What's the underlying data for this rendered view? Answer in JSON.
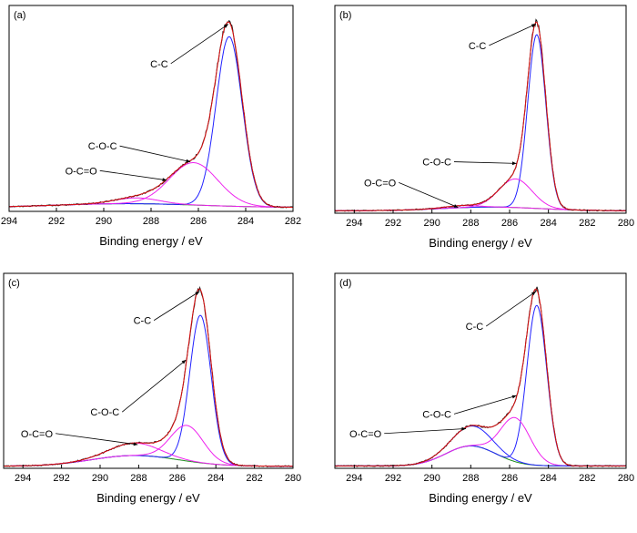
{
  "chart_data": [
    {
      "type": "line",
      "panel": "(a)",
      "xlabel": "Binding energy / eV",
      "xlim": [
        294,
        282
      ],
      "x_ticks": [
        294,
        292,
        290,
        288,
        286,
        284,
        282
      ],
      "y_axis": "none (intensity, no tick labels)",
      "grid": false,
      "series": [
        {
          "component": "C-C",
          "color": "#2222ff",
          "center": 284.7,
          "amplitude": 0.88,
          "fwhm": 1.3
        },
        {
          "component": "C-O-C",
          "color": "#ee22ee",
          "center": 286.2,
          "amplitude": 0.22,
          "fwhm": 2.4
        },
        {
          "component": "O-C=O",
          "color": "#ee22ee",
          "center": 288.6,
          "amplitude": 0.03,
          "fwhm": 2.2
        }
      ],
      "background_range": [
        0.02,
        0.02
      ],
      "background_bump": {
        "center": 289.0,
        "height": 0.02,
        "width": 6.0
      },
      "annotations": [
        {
          "text": "C-C",
          "peak_x": 284.7
        },
        {
          "text": "C-O-C",
          "peak_x": 286.3
        },
        {
          "text": "O-C=O",
          "peak_x": 287.3
        }
      ]
    },
    {
      "type": "line",
      "panel": "(b)",
      "xlabel": "Binding energy / eV",
      "xlim": [
        295,
        280
      ],
      "x_ticks": [
        294,
        292,
        290,
        288,
        286,
        284,
        282,
        280
      ],
      "y_axis": "none (intensity, no tick labels)",
      "grid": false,
      "series": [
        {
          "component": "C-C",
          "color": "#2222ff",
          "center": 284.6,
          "amplitude": 0.85,
          "fwhm": 1.1
        },
        {
          "component": "C-O-C",
          "color": "#ee22ee",
          "center": 285.7,
          "amplitude": 0.14,
          "fwhm": 2.0
        },
        {
          "component": "O-C=O",
          "color": "#ee22ee",
          "center": 288.5,
          "amplitude": 0.01,
          "fwhm": 2.0
        }
      ],
      "background_range": [
        0.012,
        0.012
      ],
      "background_bump": {
        "center": 287.0,
        "height": 0.018,
        "width": 5.0
      },
      "annotations": [
        {
          "text": "C-C",
          "peak_x": 284.6
        },
        {
          "text": "C-O-C",
          "peak_x": 285.6
        },
        {
          "text": "O-C=O",
          "peak_x": 288.6
        }
      ]
    },
    {
      "type": "line",
      "panel": "(c)",
      "xlabel": "Binding energy / eV",
      "xlim": [
        295,
        280
      ],
      "x_ticks": [
        294,
        292,
        290,
        288,
        286,
        284,
        282,
        280
      ],
      "y_axis": "none (intensity, no tick labels)",
      "grid": false,
      "series": [
        {
          "component": "C-C",
          "color": "#2222ff",
          "center": 284.8,
          "amplitude": 0.83,
          "fwhm": 1.3
        },
        {
          "component": "C-O-C",
          "color": "#ee22ee",
          "center": 285.5,
          "amplitude": 0.2,
          "fwhm": 2.0
        },
        {
          "component": "O-C=O",
          "color": "#ee22ee",
          "center": 288.2,
          "amplitude": 0.07,
          "fwhm": 3.0
        }
      ],
      "background_range": [
        0.012,
        0.012
      ],
      "background_bump": {
        "center": 288.2,
        "height": 0.06,
        "width": 4.5
      },
      "annotations": [
        {
          "text": "C-C",
          "peak_x": 284.8
        },
        {
          "text": "C-O-C",
          "peak_x": 285.5
        },
        {
          "text": "O-C=O",
          "peak_x": 288.0
        }
      ]
    },
    {
      "type": "line",
      "panel": "(d)",
      "xlabel": "Binding energy / eV",
      "xlim": [
        295,
        280
      ],
      "x_ticks": [
        294,
        292,
        290,
        288,
        286,
        284,
        282,
        280
      ],
      "y_axis": "none (intensity, no tick labels)",
      "grid": false,
      "series": [
        {
          "component": "C-C",
          "color": "#2222ff",
          "center": 284.6,
          "amplitude": 0.8,
          "fwhm": 1.2
        },
        {
          "component": "C-O-C",
          "color": "#ee22ee",
          "center": 285.7,
          "amplitude": 0.22,
          "fwhm": 1.8
        },
        {
          "component": "O-C=O",
          "color": "#2222ff",
          "center": 287.9,
          "amplitude": 0.1,
          "fwhm": 2.4
        }
      ],
      "background_range": [
        0.012,
        0.012
      ],
      "background_bump": {
        "center": 288.0,
        "height": 0.1,
        "width": 2.6
      },
      "annotations": [
        {
          "text": "C-C",
          "peak_x": 284.6
        },
        {
          "text": "C-O-C",
          "peak_x": 285.6
        },
        {
          "text": "O-C=O",
          "peak_x": 288.2
        }
      ]
    }
  ]
}
